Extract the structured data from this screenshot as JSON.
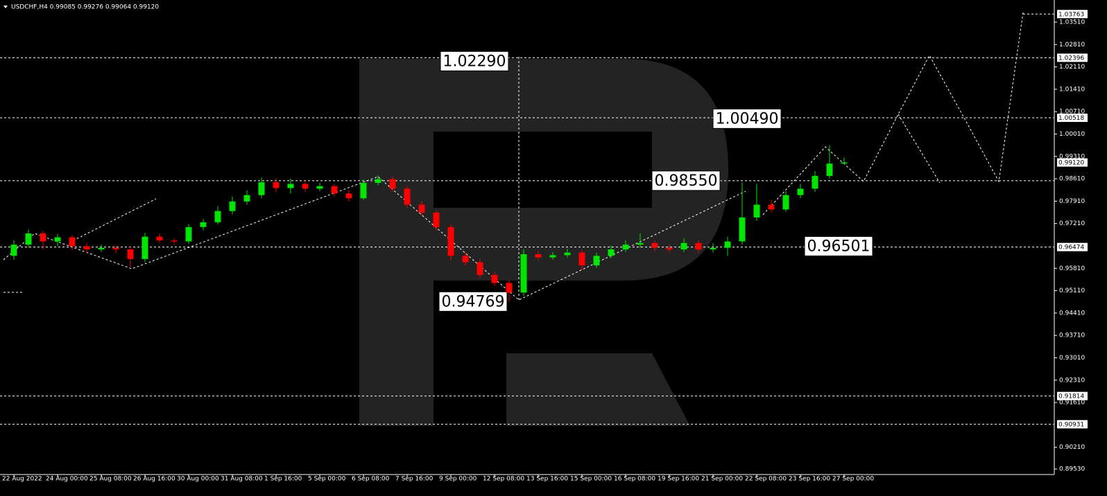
{
  "chart_data": {
    "type": "candlestick",
    "title": "USDCHF,H4  0.99085 0.99276 0.99064 0.99120",
    "up_color": "#00e600",
    "down_color": "#ff0000",
    "ylim": [
      0.89358,
      1.04203
    ],
    "yticks": [
      {
        "value": 1.0351,
        "label": "1.03510"
      },
      {
        "value": 1.0281,
        "label": "1.02810"
      },
      {
        "value": 1.0211,
        "label": "1.02110"
      },
      {
        "value": 1.0141,
        "label": "1.01410"
      },
      {
        "value": 1.0071,
        "label": "1.00710"
      },
      {
        "value": 1.0001,
        "label": "1.00010"
      },
      {
        "value": 0.9931,
        "label": "0.99310"
      },
      {
        "value": 0.9861,
        "label": "0.98610"
      },
      {
        "value": 0.9791,
        "label": "0.97910"
      },
      {
        "value": 0.9721,
        "label": "0.97210"
      },
      {
        "value": 0.9581,
        "label": "0.95810"
      },
      {
        "value": 0.9511,
        "label": "0.95110"
      },
      {
        "value": 0.9441,
        "label": "0.94410"
      },
      {
        "value": 0.9371,
        "label": "0.93710"
      },
      {
        "value": 0.9301,
        "label": "0.93010"
      },
      {
        "value": 0.9231,
        "label": "0.92310"
      },
      {
        "value": 0.9161,
        "label": "0.91610"
      },
      {
        "value": 0.9021,
        "label": "0.90210"
      },
      {
        "value": 0.8953,
        "label": "0.89530"
      }
    ],
    "levels": [
      {
        "value": 1.03763,
        "line": "short"
      },
      {
        "value": 1.02396,
        "line": "full"
      },
      {
        "value": 1.00518,
        "line": "full"
      },
      {
        "value": 0.9912,
        "label": "0.99120",
        "line": "none"
      },
      {
        "value": 0.96474,
        "line": "full"
      },
      {
        "value": 0.91814,
        "line": "full"
      },
      {
        "value": 0.90931,
        "line": "full"
      }
    ],
    "annotations": [
      {
        "value": 1.0229,
        "label": "1.02290",
        "line": false
      },
      {
        "value": 1.0049,
        "label": "1.00490",
        "line": false
      },
      {
        "value": 0.9855,
        "label": "0.98550",
        "line": true
      },
      {
        "value": 0.96501,
        "label": "0.96501",
        "line": false
      },
      {
        "value": 0.94769,
        "label": "0.94769",
        "line": false
      }
    ],
    "categories": [
      "22 Aug 2022",
      null,
      null,
      "24 Aug 00:00",
      null,
      null,
      "25 Aug 08:00",
      null,
      null,
      "26 Aug 16:00",
      null,
      null,
      "30 Aug 00:00",
      null,
      null,
      "31 Aug 08:00",
      null,
      null,
      "1 Sep 16:00",
      null,
      null,
      "5 Sep 00:00",
      null,
      null,
      "6 Sep 08:00",
      null,
      null,
      "7 Sep 16:00",
      null,
      null,
      "9 Sep 00:00",
      null,
      null,
      "12 Sep 08:00",
      null,
      null,
      "13 Sep 16:00",
      null,
      null,
      "15 Sep 00:00",
      null,
      null,
      "16 Sep 08:00",
      null,
      null,
      "19 Sep 16:00",
      null,
      null,
      "21 Sep 00:00",
      null,
      null,
      "22 Sep 08:00",
      null,
      null,
      "23 Sep 16:00",
      null,
      null,
      "27 Sep 00:00"
    ],
    "open": [
      0.962,
      0.9655,
      0.969,
      0.9665,
      0.9678,
      0.965,
      0.964,
      0.9645,
      0.964,
      0.961,
      0.968,
      0.9668,
      0.9665,
      0.971,
      0.9725,
      0.976,
      0.979,
      0.981,
      0.985,
      0.9832,
      0.9845,
      0.983,
      0.9838,
      0.9815,
      0.98,
      0.9848,
      0.986,
      0.983,
      0.978,
      0.9755,
      0.971,
      0.962,
      0.96,
      0.956,
      0.9535,
      0.9505,
      0.9625,
      0.9615,
      0.9622,
      0.963,
      0.959,
      0.962,
      0.964,
      0.9655,
      0.966,
      0.9645,
      0.964,
      0.966,
      0.964,
      0.9645,
      0.9665,
      0.974,
      0.978,
      0.9765,
      0.981,
      0.983,
      0.987,
      0.99085
    ],
    "high": [
      0.9668,
      0.9702,
      0.9698,
      0.9688,
      0.9685,
      0.966,
      0.9655,
      0.9652,
      0.965,
      0.9692,
      0.969,
      0.9675,
      0.972,
      0.9735,
      0.9775,
      0.9805,
      0.9825,
      0.9865,
      0.9862,
      0.9862,
      0.9855,
      0.9848,
      0.9845,
      0.9825,
      0.9858,
      0.9872,
      0.9868,
      0.9838,
      0.979,
      0.9762,
      0.9718,
      0.963,
      0.961,
      0.957,
      0.9545,
      0.964,
      0.9635,
      0.9632,
      0.9642,
      0.9638,
      0.963,
      0.9652,
      0.9668,
      0.969,
      0.9668,
      0.9655,
      0.9675,
      0.9668,
      0.966,
      0.968,
      0.985,
      0.9845,
      0.9795,
      0.9822,
      0.9845,
      0.9885,
      0.9966,
      0.99276
    ],
    "low": [
      0.9608,
      0.9645,
      0.964,
      0.965,
      0.9638,
      0.963,
      0.9632,
      0.9628,
      0.9585,
      0.96,
      0.966,
      0.9655,
      0.9658,
      0.97,
      0.9718,
      0.975,
      0.978,
      0.98,
      0.982,
      0.9815,
      0.982,
      0.9822,
      0.9805,
      0.979,
      0.9795,
      0.984,
      0.982,
      0.977,
      0.9745,
      0.97,
      0.9605,
      0.959,
      0.955,
      0.9525,
      0.9477,
      0.9495,
      0.9605,
      0.9608,
      0.9615,
      0.9575,
      0.9582,
      0.9612,
      0.9632,
      0.9645,
      0.9635,
      0.963,
      0.9632,
      0.963,
      0.963,
      0.962,
      0.9655,
      0.973,
      0.9755,
      0.9758,
      0.98,
      0.982,
      0.9862,
      0.99064
    ],
    "close": [
      0.9655,
      0.969,
      0.9665,
      0.9678,
      0.965,
      0.964,
      0.9645,
      0.964,
      0.961,
      0.968,
      0.9668,
      0.9665,
      0.971,
      0.9725,
      0.976,
      0.979,
      0.981,
      0.985,
      0.9832,
      0.9845,
      0.983,
      0.9838,
      0.9815,
      0.98,
      0.9848,
      0.986,
      0.983,
      0.978,
      0.9755,
      0.971,
      0.962,
      0.96,
      0.956,
      0.9535,
      0.9505,
      0.9625,
      0.9615,
      0.9622,
      0.963,
      0.959,
      0.962,
      0.964,
      0.9655,
      0.966,
      0.9645,
      0.964,
      0.966,
      0.964,
      0.9645,
      0.9665,
      0.974,
      0.978,
      0.9765,
      0.981,
      0.983,
      0.987,
      0.99085,
      0.9912
    ]
  }
}
